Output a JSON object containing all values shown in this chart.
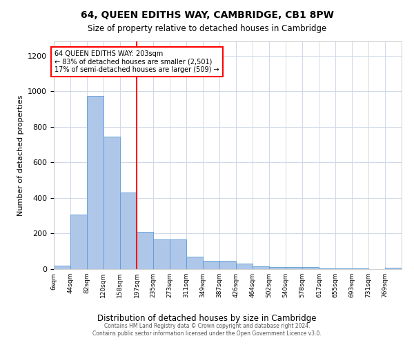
{
  "title": "64, QUEEN EDITHS WAY, CAMBRIDGE, CB1 8PW",
  "subtitle": "Size of property relative to detached houses in Cambridge",
  "xlabel": "Distribution of detached houses by size in Cambridge",
  "ylabel": "Number of detached properties",
  "bar_color": "#aec6e8",
  "bar_edge_color": "#5b9bd5",
  "vline_color": "red",
  "vline_x_index": 5,
  "annotation_text": "64 QUEEN EDITHS WAY: 203sqm\n← 83% of detached houses are smaller (2,501)\n17% of semi-detached houses are larger (509) →",
  "categories": [
    "6sqm",
    "44sqm",
    "82sqm",
    "120sqm",
    "158sqm",
    "197sqm",
    "235sqm",
    "273sqm",
    "311sqm",
    "349sqm",
    "387sqm",
    "426sqm",
    "464sqm",
    "502sqm",
    "540sqm",
    "578sqm",
    "617sqm",
    "655sqm",
    "693sqm",
    "731sqm",
    "769sqm"
  ],
  "bin_edges": [
    6,
    44,
    82,
    120,
    158,
    197,
    235,
    273,
    311,
    349,
    387,
    426,
    464,
    502,
    540,
    578,
    617,
    655,
    693,
    731,
    769
  ],
  "values": [
    20,
    305,
    975,
    745,
    430,
    210,
    165,
    165,
    70,
    45,
    45,
    30,
    15,
    12,
    10,
    10,
    5,
    3,
    2,
    1,
    8
  ],
  "ylim": [
    0,
    1280
  ],
  "yticks": [
    0,
    200,
    400,
    600,
    800,
    1000,
    1200
  ],
  "xlim_min": 6,
  "xlim_max": 807,
  "background_color": "#ffffff",
  "grid_color": "#d0d8e8",
  "footer_line1": "Contains HM Land Registry data © Crown copyright and database right 2024.",
  "footer_line2": "Contains public sector information licensed under the Open Government Licence v3.0."
}
